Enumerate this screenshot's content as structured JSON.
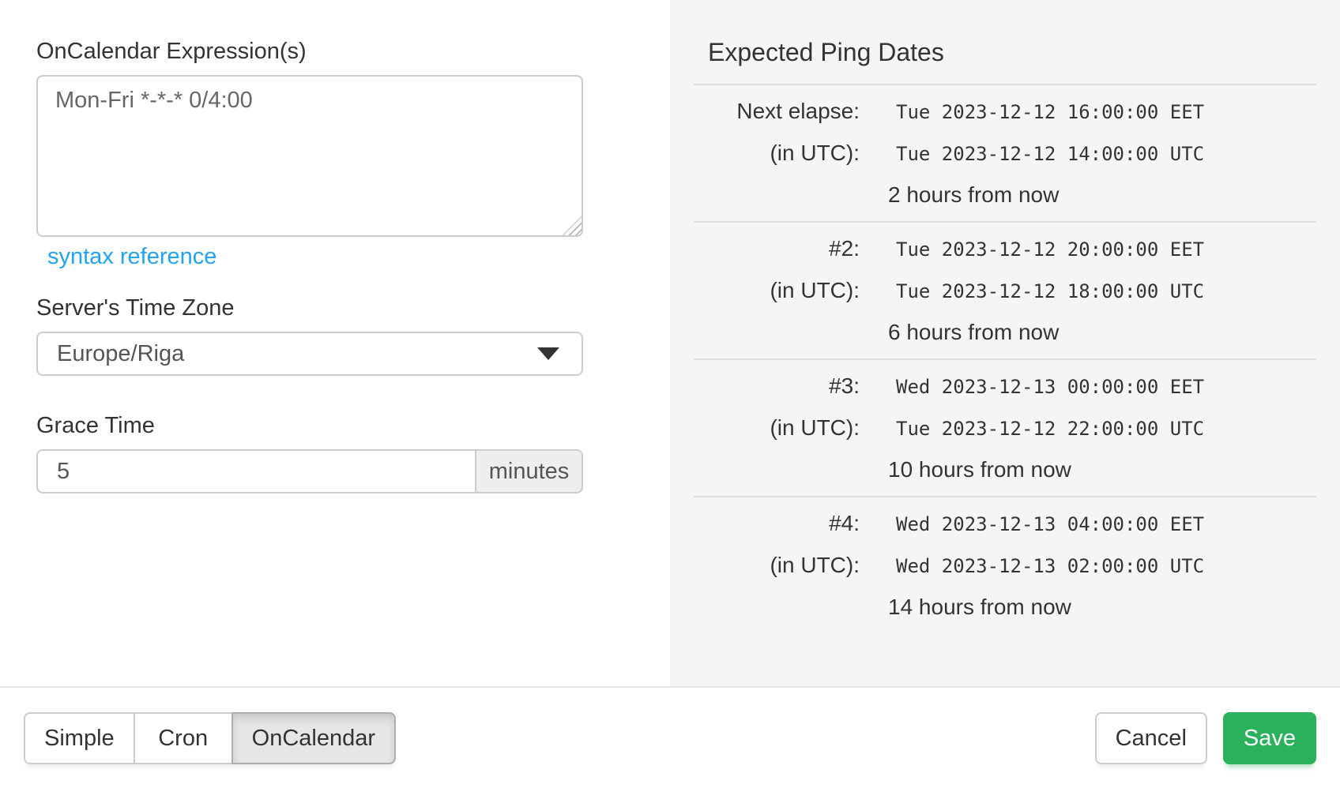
{
  "form": {
    "oncalendar_label": "OnCalendar Expression(s)",
    "oncalendar_value": "Mon-Fri *-*-* 0/4:00",
    "syntax_link": "syntax reference",
    "timezone_label": "Server's Time Zone",
    "timezone_value": "Europe/Riga",
    "grace_label": "Grace Time",
    "grace_value": "5",
    "grace_unit": "minutes"
  },
  "ping": {
    "heading": "Expected Ping Dates",
    "groups": [
      {
        "label": "Next elapse:",
        "eet": "Tue 2023-12-12 16:00:00 EET",
        "utc_label": "(in UTC):",
        "utc": "Tue 2023-12-12 14:00:00 UTC",
        "relative": "2 hours from now"
      },
      {
        "label": "#2:",
        "eet": "Tue 2023-12-12 20:00:00 EET",
        "utc_label": "(in UTC):",
        "utc": "Tue 2023-12-12 18:00:00 UTC",
        "relative": "6 hours from now"
      },
      {
        "label": "#3:",
        "eet": "Wed 2023-12-13 00:00:00 EET",
        "utc_label": "(in UTC):",
        "utc": "Tue 2023-12-12 22:00:00 UTC",
        "relative": "10 hours from now"
      },
      {
        "label": "#4:",
        "eet": "Wed 2023-12-13 04:00:00 EET",
        "utc_label": "(in UTC):",
        "utc": "Wed 2023-12-13 02:00:00 UTC",
        "relative": "14 hours from now"
      }
    ]
  },
  "footer": {
    "tabs": [
      {
        "label": "Simple",
        "active": false
      },
      {
        "label": "Cron",
        "active": false
      },
      {
        "label": "OnCalendar",
        "active": true
      }
    ],
    "cancel_label": "Cancel",
    "save_label": "Save"
  },
  "colors": {
    "save_green": "#2bb05c",
    "link_blue": "#22a2ef",
    "panel_gray": "#f5f5f5",
    "active_tab_gray": "#e6e6e6"
  }
}
